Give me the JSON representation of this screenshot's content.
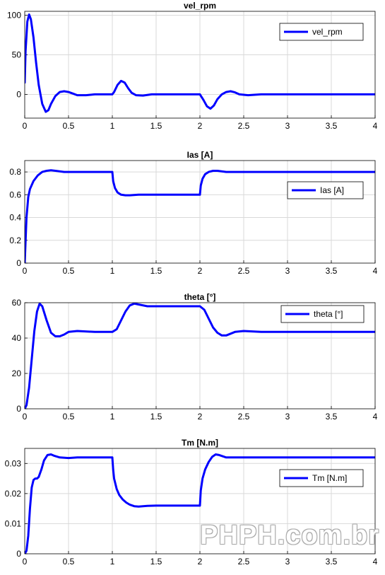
{
  "watermark": "PHPH.com.br",
  "colors": {
    "line": "#0000ff",
    "grid": "#d9d9d9",
    "axis": "#000000"
  },
  "chart_data": [
    {
      "type": "line",
      "title": "vel_rpm",
      "xlim": [
        0,
        4
      ],
      "ylim": [
        -30,
        105
      ],
      "xticks": [
        "0",
        "0.5",
        "1",
        "1.5",
        "2",
        "2.5",
        "3",
        "3.5",
        "4"
      ],
      "yticks": [
        "0",
        "50",
        "100"
      ],
      "ytick_values": [
        0,
        50,
        100
      ],
      "grid": true,
      "legend": "top-right",
      "series": [
        {
          "name": "vel_rpm",
          "x": [
            0,
            0.01,
            0.03,
            0.05,
            0.07,
            0.1,
            0.13,
            0.16,
            0.2,
            0.24,
            0.27,
            0.3,
            0.35,
            0.4,
            0.45,
            0.5,
            0.55,
            0.6,
            0.7,
            0.8,
            1.0,
            1.02,
            1.06,
            1.1,
            1.14,
            1.18,
            1.22,
            1.27,
            1.35,
            1.45,
            1.6,
            2.0,
            2.04,
            2.08,
            2.12,
            2.16,
            2.2,
            2.25,
            2.3,
            2.35,
            2.4,
            2.45,
            2.55,
            2.7,
            4.0
          ],
          "y": [
            15,
            55,
            92,
            101,
            95,
            72,
            40,
            12,
            -12,
            -22,
            -20,
            -12,
            -2,
            3,
            4,
            3,
            1,
            -1,
            -1,
            0,
            0,
            3,
            12,
            17,
            15,
            8,
            2,
            -1,
            -1.5,
            0,
            0,
            0,
            -7,
            -15,
            -18,
            -14,
            -6,
            0,
            3,
            4,
            2.5,
            0,
            -1,
            0,
            0
          ]
        }
      ]
    },
    {
      "type": "line",
      "title": "Ias [A]",
      "xlim": [
        0,
        4
      ],
      "ylim": [
        0,
        0.9
      ],
      "xticks": [
        "0",
        "0.5",
        "1",
        "1.5",
        "2",
        "2.5",
        "3",
        "3.5",
        "4"
      ],
      "yticks": [
        "0",
        "0.2",
        "0.4",
        "0.6",
        "0.8"
      ],
      "ytick_values": [
        0,
        0.2,
        0.4,
        0.6,
        0.8
      ],
      "grid": true,
      "legend": "center-right",
      "series": [
        {
          "name": "Ias [A]",
          "x": [
            0,
            0.02,
            0.04,
            0.06,
            0.1,
            0.15,
            0.2,
            0.25,
            0.3,
            0.35,
            0.45,
            0.6,
            1.0,
            1.01,
            1.03,
            1.06,
            1.1,
            1.15,
            1.2,
            1.3,
            1.5,
            2.0,
            2.01,
            2.03,
            2.06,
            2.1,
            2.15,
            2.2,
            2.3,
            2.5,
            4.0
          ],
          "y": [
            0,
            0.4,
            0.58,
            0.65,
            0.72,
            0.77,
            0.8,
            0.81,
            0.815,
            0.81,
            0.8,
            0.8,
            0.8,
            0.72,
            0.66,
            0.62,
            0.6,
            0.595,
            0.595,
            0.6,
            0.6,
            0.6,
            0.68,
            0.74,
            0.78,
            0.8,
            0.81,
            0.81,
            0.8,
            0.8,
            0.8
          ]
        }
      ]
    },
    {
      "type": "line",
      "title": "theta [°]",
      "xlim": [
        0,
        4
      ],
      "ylim": [
        0,
        60
      ],
      "xticks": [
        "0",
        "0.5",
        "1",
        "1.5",
        "2",
        "2.5",
        "3",
        "3.5",
        "4"
      ],
      "yticks": [
        "0",
        "20",
        "40",
        "60"
      ],
      "ytick_values": [
        0,
        20,
        40,
        60
      ],
      "grid": true,
      "legend": "top-right",
      "series": [
        {
          "name": "theta [°]",
          "x": [
            0,
            0.02,
            0.05,
            0.08,
            0.11,
            0.14,
            0.17,
            0.2,
            0.25,
            0.3,
            0.35,
            0.4,
            0.45,
            0.5,
            0.6,
            0.8,
            1.0,
            1.05,
            1.1,
            1.15,
            1.2,
            1.25,
            1.3,
            1.4,
            1.5,
            2.0,
            2.05,
            2.1,
            2.15,
            2.2,
            2.25,
            2.3,
            2.35,
            2.4,
            2.5,
            2.7,
            4.0
          ],
          "y": [
            0,
            2,
            12,
            28,
            44,
            55,
            59.5,
            58,
            50,
            43,
            41,
            41,
            42,
            43.5,
            44,
            43.5,
            43.5,
            45,
            50,
            55,
            58.5,
            59.5,
            59,
            58,
            58,
            58,
            56,
            51,
            46,
            43,
            41.5,
            41.5,
            42.5,
            43.5,
            44,
            43.5,
            43.5
          ]
        }
      ]
    },
    {
      "type": "line",
      "title": "Tm [N.m]",
      "xlim": [
        0,
        4
      ],
      "ylim": [
        0,
        0.035
      ],
      "xticks": [
        "0",
        "0.5",
        "1",
        "1.5",
        "2",
        "2.5",
        "3",
        "3.5",
        "4"
      ],
      "yticks": [
        "0",
        "0.01",
        "0.02",
        "0.03"
      ],
      "ytick_values": [
        0,
        0.01,
        0.02,
        0.03
      ],
      "grid": true,
      "legend": "center-right",
      "series": [
        {
          "name": "Tm [N.m]",
          "x": [
            0,
            0.02,
            0.04,
            0.06,
            0.08,
            0.1,
            0.12,
            0.14,
            0.16,
            0.19,
            0.22,
            0.26,
            0.3,
            0.34,
            0.4,
            0.5,
            0.6,
            1.0,
            1.01,
            1.02,
            1.05,
            1.08,
            1.12,
            1.16,
            1.2,
            1.25,
            1.3,
            1.4,
            1.5,
            2.0,
            2.01,
            2.03,
            2.06,
            2.1,
            2.14,
            2.18,
            2.22,
            2.3,
            2.5,
            4.0
          ],
          "y": [
            0,
            0.001,
            0.006,
            0.015,
            0.022,
            0.0245,
            0.025,
            0.025,
            0.0255,
            0.028,
            0.031,
            0.0328,
            0.033,
            0.0325,
            0.032,
            0.0318,
            0.032,
            0.032,
            0.028,
            0.025,
            0.0215,
            0.0195,
            0.018,
            0.017,
            0.0163,
            0.0158,
            0.0157,
            0.0159,
            0.016,
            0.016,
            0.021,
            0.025,
            0.028,
            0.0305,
            0.0322,
            0.033,
            0.0328,
            0.032,
            0.032,
            0.032
          ]
        }
      ]
    }
  ]
}
